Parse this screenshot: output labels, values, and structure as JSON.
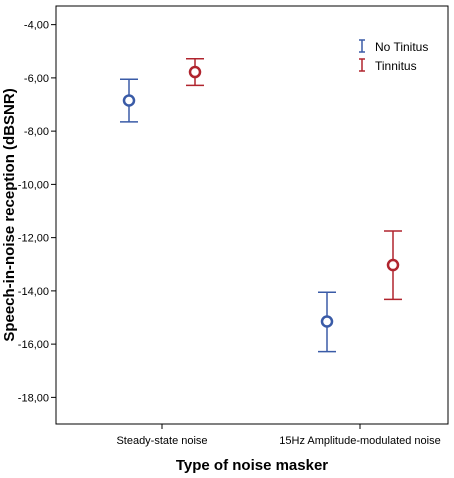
{
  "chart_data": {
    "type": "scatter",
    "subtype": "error-bar",
    "xlabel": "Type of noise masker",
    "ylabel": "Speech-in-noise reception (dBSNR)",
    "categories": [
      "Steady-state noise",
      "15Hz Amplitude-modulated noise"
    ],
    "ylim": [
      -19.0,
      -3.3
    ],
    "yticks": [
      -4,
      -6,
      -8,
      -10,
      -12,
      -14,
      -16,
      -18
    ],
    "ytick_labels": [
      "-4,00",
      "-6,00",
      "-8,00",
      "-10,00",
      "-12,00",
      "-14,00",
      "-16,00",
      "-18,00"
    ],
    "grid": false,
    "legend_position": "top-right",
    "series": [
      {
        "name": "No Tinitus",
        "color": "#3a5ba7",
        "mean": [
          -6.85,
          -15.15
        ],
        "upper": [
          -6.05,
          -14.05
        ],
        "lower": [
          -7.65,
          -16.28
        ]
      },
      {
        "name": "Tinnitus",
        "color": "#b0242e",
        "mean": [
          -5.78,
          -13.03
        ],
        "upper": [
          -5.28,
          -11.75
        ],
        "lower": [
          -6.28,
          -14.32
        ]
      }
    ]
  }
}
